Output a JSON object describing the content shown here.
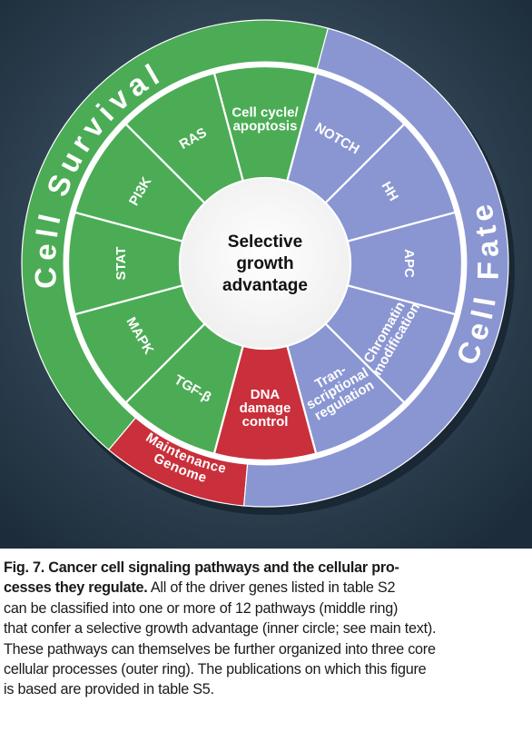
{
  "figure": {
    "center_label": [
      "Selective",
      "growth",
      "advantage"
    ],
    "pathways": [
      {
        "id": "cell-cycle-apoptosis",
        "lines": [
          "Cell cycle/",
          "apoptosis"
        ],
        "group": "survival"
      },
      {
        "id": "notch",
        "lines": [
          "NOTCH"
        ],
        "group": "fate"
      },
      {
        "id": "hh",
        "lines": [
          "HH"
        ],
        "group": "fate"
      },
      {
        "id": "apc",
        "lines": [
          "APC"
        ],
        "group": "fate"
      },
      {
        "id": "chromatin-modification",
        "lines": [
          "Chromatin",
          "modification"
        ],
        "group": "fate"
      },
      {
        "id": "transcriptional-regulation",
        "lines": [
          "Tran-",
          "scriptional",
          "regulation"
        ],
        "group": "fate"
      },
      {
        "id": "dna-damage-control",
        "lines": [
          "DNA",
          "damage",
          "control"
        ],
        "group": "maintenance"
      },
      {
        "id": "tgf-beta",
        "lines": [
          "TGF-β"
        ],
        "group": "survival"
      },
      {
        "id": "mapk",
        "lines": [
          "MAPK"
        ],
        "group": "survival"
      },
      {
        "id": "stat",
        "lines": [
          "STAT"
        ],
        "group": "survival"
      },
      {
        "id": "pi3k",
        "lines": [
          "PI3K"
        ],
        "group": "survival"
      },
      {
        "id": "ras",
        "lines": [
          "RAS"
        ],
        "group": "survival"
      }
    ],
    "core_processes": {
      "survival": {
        "label": "Cell Survival"
      },
      "fate": {
        "label": "Cell Fate"
      },
      "maintenance": {
        "lines": [
          "Genome",
          "Maintenance"
        ]
      }
    },
    "colors": {
      "survival": "#4bac55",
      "fate": "#8a96d2",
      "maintenance": "#c9303b",
      "background_light": "#4c6477",
      "background_dark": "#1c2c3a"
    }
  },
  "caption": {
    "bold_lines": [
      "Fig. 7. Cancer cell signaling pathways and the cellular pro-",
      "cesses they regulate."
    ],
    "lines_after_bold": [
      " All of the driver genes listed in table S2",
      "can be classified into one or more of 12 pathways (middle ring)",
      "that confer a selective growth advantage (inner circle; see main text).",
      "These pathways can themselves be further organized into three core",
      "cellular processes (outer ring). The publications on which this figure",
      "is based are provided in table S5."
    ]
  }
}
